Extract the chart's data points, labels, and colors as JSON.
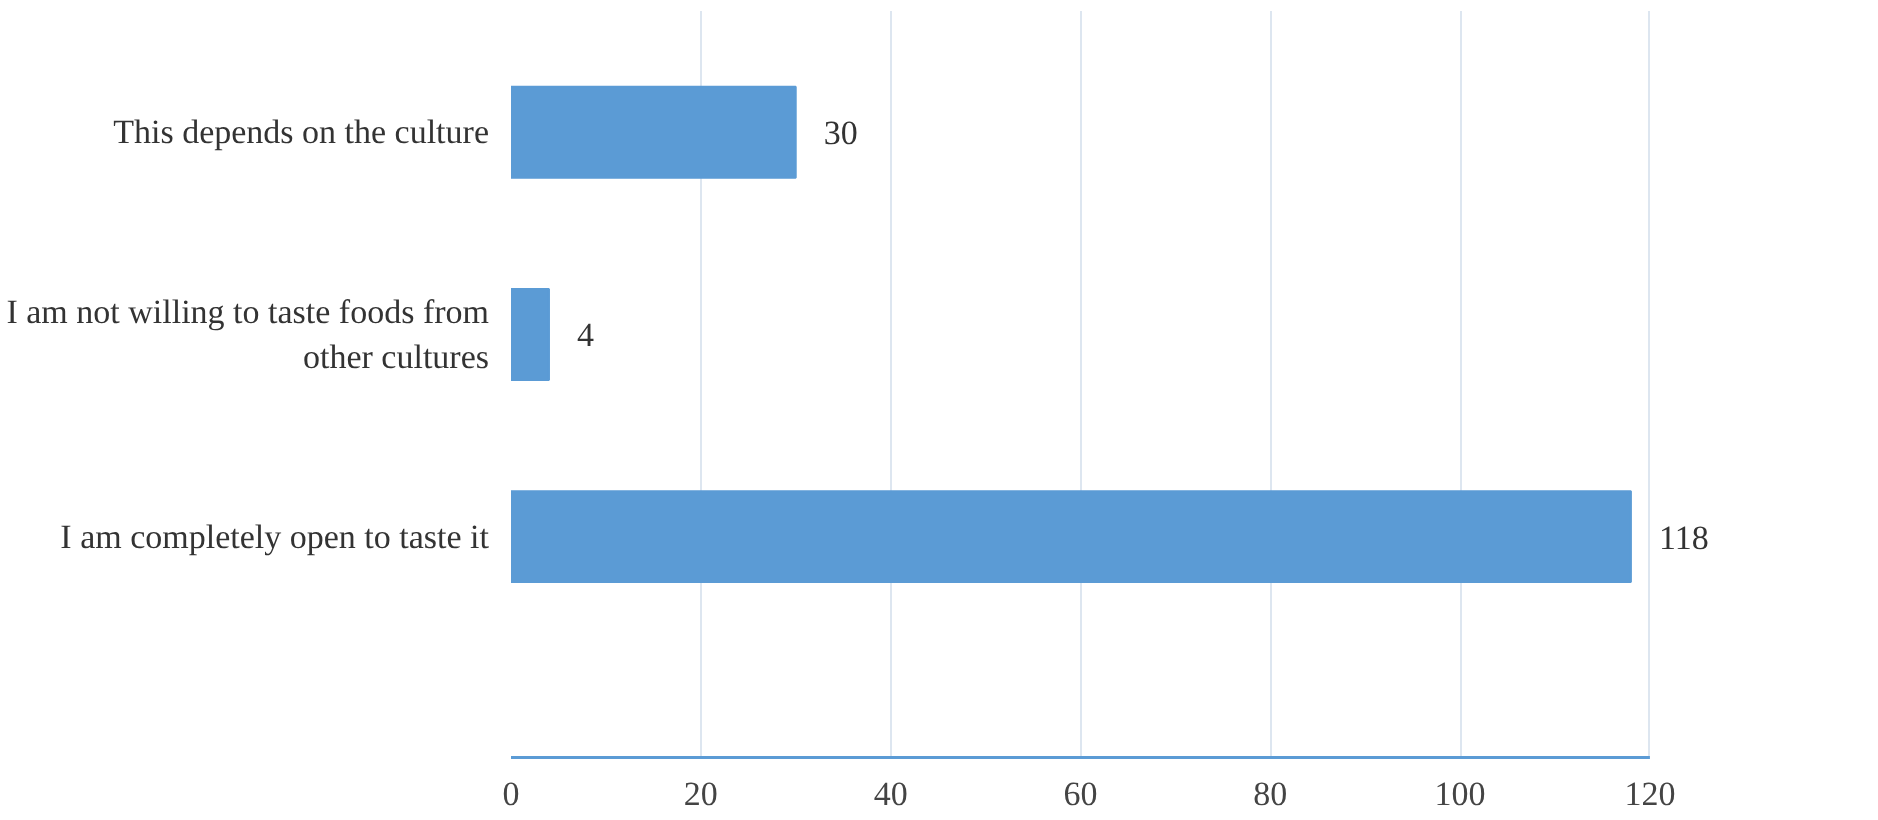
{
  "chart_data": {
    "type": "bar",
    "orientation": "horizontal",
    "categories": [
      "This depends on the culture",
      "I am not willing to taste foods from other cultures",
      "I am completely open to taste it"
    ],
    "values": [
      30,
      4,
      118
    ],
    "color": "#5b9bd5",
    "xlim": [
      0,
      120
    ],
    "xticks": [
      0,
      20,
      40,
      60,
      80,
      100,
      120
    ],
    "grid": "x",
    "data_labels": true
  }
}
